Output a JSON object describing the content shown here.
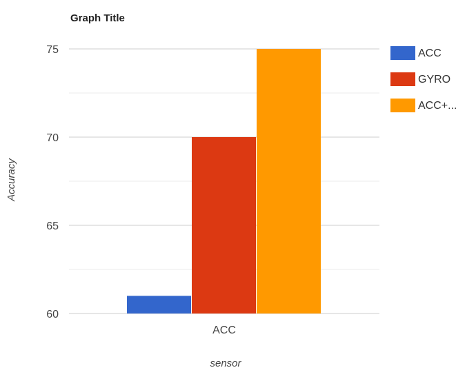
{
  "chart_data": {
    "type": "bar",
    "title": "Graph Title",
    "xlabel": "sensor",
    "ylabel": "Accuracy",
    "categories": [
      "ACC"
    ],
    "series": [
      {
        "name": "ACC",
        "values": [
          61
        ],
        "color": "#3366cc"
      },
      {
        "name": "GYRO",
        "values": [
          70
        ],
        "color": "#dc3912"
      },
      {
        "name": "ACC+...",
        "values": [
          75
        ],
        "color": "#ff9900"
      }
    ],
    "ylim": [
      60,
      75
    ],
    "yticks": [
      "60",
      "65",
      "70",
      "75"
    ],
    "grid": true,
    "minor_grid": true,
    "legend_position": "right"
  }
}
